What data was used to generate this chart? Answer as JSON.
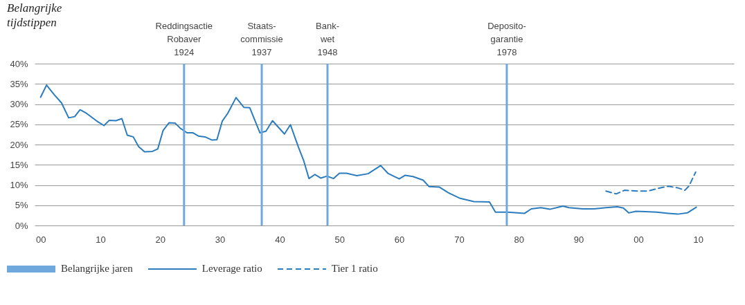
{
  "chart_data": {
    "type": "line",
    "title": "Belangrijke tijdstippen",
    "annotations": [
      "Belangrijke jaren"
    ],
    "xlim": [
      1899,
      2016
    ],
    "xticks": [
      {
        "value": 1900,
        "label": "00"
      },
      {
        "value": 1910,
        "label": "10"
      },
      {
        "value": 1920,
        "label": "20"
      },
      {
        "value": 1930,
        "label": "30"
      },
      {
        "value": 1940,
        "label": "40"
      },
      {
        "value": 1950,
        "label": "50"
      },
      {
        "value": 1960,
        "label": "60"
      },
      {
        "value": 1970,
        "label": "70"
      },
      {
        "value": 1980,
        "label": "80"
      },
      {
        "value": 1990,
        "label": "90"
      },
      {
        "value": 2000,
        "label": "00"
      },
      {
        "value": 2010,
        "label": "10"
      }
    ],
    "ylim": [
      0,
      40
    ],
    "yticks": [
      {
        "value": 0,
        "label": "0%"
      },
      {
        "value": 5,
        "label": "5%"
      },
      {
        "value": 10,
        "label": "10%"
      },
      {
        "value": 15,
        "label": "15%"
      },
      {
        "value": 20,
        "label": "20%"
      },
      {
        "value": 25,
        "label": "25%"
      },
      {
        "value": 30,
        "label": "30%"
      },
      {
        "value": 35,
        "label": "35%"
      },
      {
        "value": 40,
        "label": "40%"
      }
    ],
    "grid": "y",
    "legend": "bottom",
    "ref_lines": [
      {
        "axis": "x",
        "value": 1924,
        "label": "Reddingsactie\nRobaver\n1924",
        "color": "#6fa8dc"
      },
      {
        "axis": "x",
        "value": 1937,
        "label": "Staats-\ncommissie\n1937",
        "color": "#6fa8dc"
      },
      {
        "axis": "x",
        "value": 1948,
        "label": "Bank-\nwet\n1948",
        "color": "#6fa8dc"
      },
      {
        "axis": "x",
        "value": 1978,
        "label": "Deposito-\ngarantie\n1978",
        "color": "#6fa8dc"
      }
    ],
    "series": [
      {
        "name": "Leverage ratio",
        "color": "#2b7bbf",
        "line_style": "solid",
        "x": [
          1900,
          1901,
          1902.3,
          1903.5,
          1904.7,
          1905.7,
          1906.6,
          1907.7,
          1909.4,
          1910.6,
          1911.5,
          1912.6,
          1913.6,
          1914.5,
          1915.5,
          1916.4,
          1917.4,
          1918.7,
          1919.6,
          1920.5,
          1921.5,
          1922.5,
          1923.4,
          1924.5,
          1925.5,
          1926.4,
          1927.5,
          1928.7,
          1929.5,
          1930.4,
          1931.3,
          1932.7,
          1934,
          1935,
          1936.7,
          1937.7,
          1938.8,
          1940.8,
          1941.8,
          1943.1,
          1944,
          1944.9,
          1945.9,
          1946.9,
          1947.9,
          1949,
          1950,
          1951.2,
          1952.9,
          1954.8,
          1956.9,
          1958.1,
          1960,
          1961,
          1962.3,
          1964,
          1965,
          1966.7,
          1968.2,
          1970.2,
          1972.5,
          1975.1,
          1976.1,
          1978.1,
          1981,
          1982.1,
          1983.7,
          1985.2,
          1987.4,
          1988.4,
          1990.7,
          1992.6,
          1994.6,
          1996.5,
          1997.5,
          1998.4,
          1999.6,
          2001.2,
          2003.1,
          2005,
          2006.6,
          2008.2,
          2009.7
        ],
        "values": [
          31.7,
          34.7,
          32.3,
          30.3,
          26.6,
          26.9,
          28.6,
          27.7,
          25.8,
          24.7,
          26.0,
          25.9,
          26.4,
          22.3,
          21.9,
          19.5,
          18.2,
          18.3,
          18.9,
          23.5,
          25.4,
          25.3,
          24.0,
          22.9,
          22.9,
          22.1,
          21.9,
          21.1,
          21.2,
          25.8,
          27.7,
          31.6,
          29.2,
          29.1,
          22.9,
          23.3,
          25.9,
          22.6,
          24.9,
          19.5,
          16.1,
          11.6,
          12.6,
          11.7,
          12.2,
          11.6,
          12.9,
          12.9,
          12.3,
          12.8,
          14.8,
          12.9,
          11.5,
          12.4,
          12.1,
          11.2,
          9.6,
          9.5,
          8.1,
          6.7,
          5.9,
          5.8,
          3.3,
          3.3,
          3.0,
          4.1,
          4.4,
          4.0,
          4.8,
          4.4,
          4.1,
          4.1,
          4.4,
          4.6,
          4.3,
          3.1,
          3.5,
          3.4,
          3.3,
          3.0,
          2.8,
          3.1,
          4.5
        ]
      },
      {
        "name": "Tier 1 ratio",
        "color": "#2b7bbf",
        "line_style": "dashed",
        "x": [
          1994.6,
          1996.3,
          1997.7,
          2000,
          2001.6,
          2003.1,
          2005,
          2006.6,
          2007.8,
          2008.5,
          2009.6
        ],
        "values": [
          8.5,
          7.8,
          8.7,
          8.5,
          8.5,
          9.1,
          9.7,
          9.3,
          8.7,
          9.8,
          13.2
        ]
      }
    ]
  }
}
